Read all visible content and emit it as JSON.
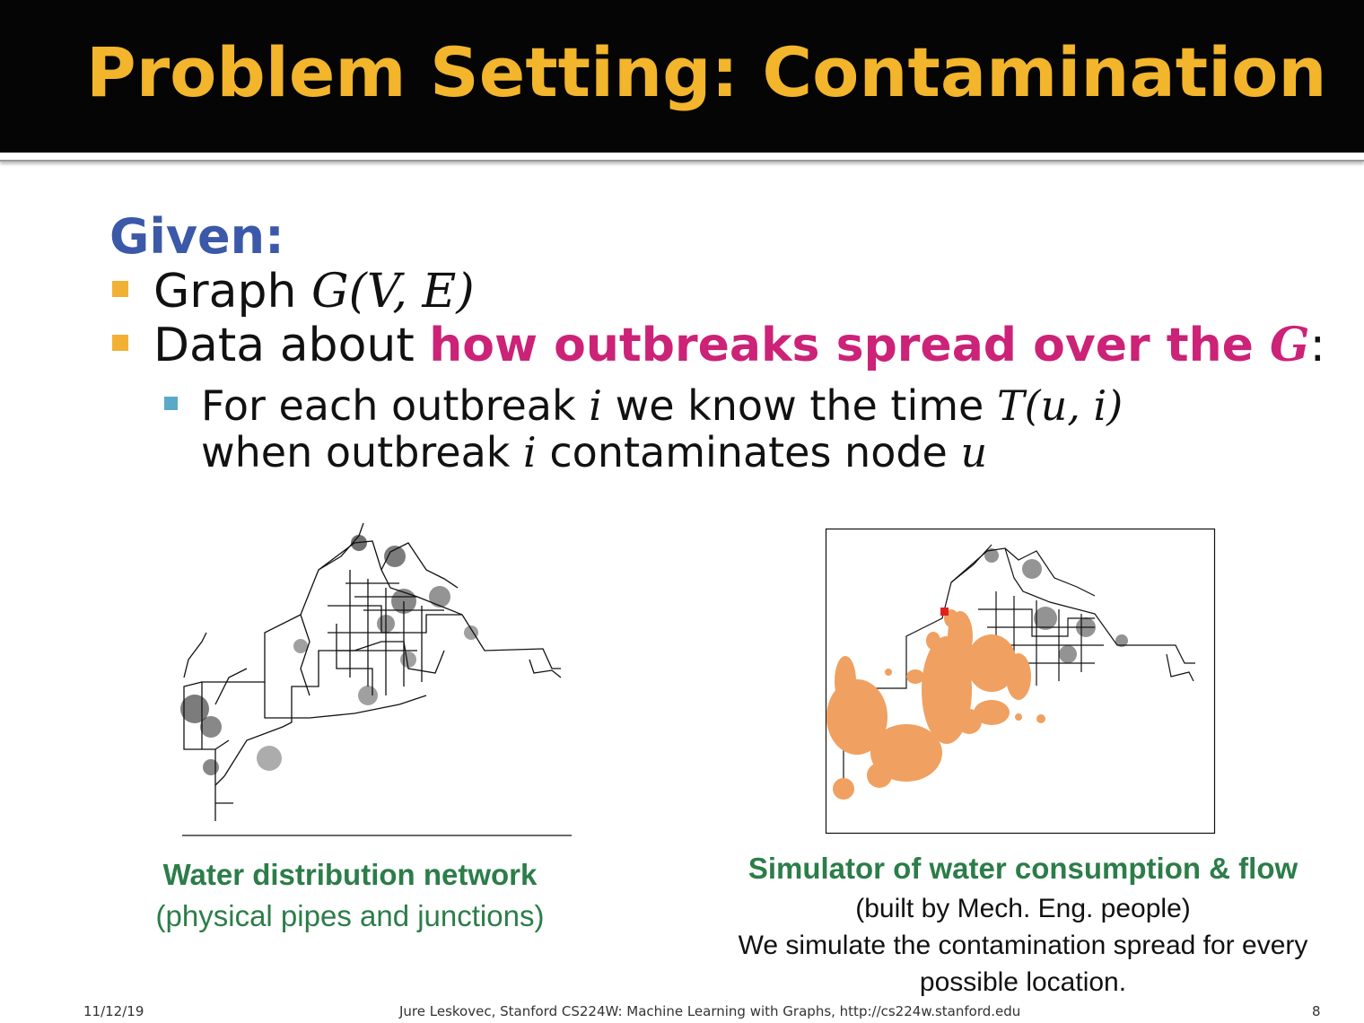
{
  "header": {
    "title": "Problem Setting: Contamination"
  },
  "body": {
    "given_label": "Given:",
    "bullets": [
      {
        "text": "Graph ",
        "math": "G(V, E)"
      },
      {
        "text": "Data about ",
        "highlight": "how outbreaks spread over the ",
        "highlight_math": "G",
        "suffix": ":"
      }
    ],
    "sub_bullet": {
      "line1_a": "For each outbreak ",
      "line1_m1": "i",
      "line1_b": " we know the time ",
      "line1_m2": "T(u, i)",
      "line2_a": "when outbreak ",
      "line2_m1": "i",
      "line2_b": " contaminates node ",
      "line2_m2": "u"
    }
  },
  "figures": {
    "left": {
      "caption_bold": "Water distribution network",
      "caption_sub": "(physical pipes and junctions)"
    },
    "right": {
      "caption_bold": "Simulator of water consumption & flow",
      "caption_line1": "(built by Mech. Eng. people)",
      "caption_line2": "We simulate the contamination spread for every",
      "caption_line3": "possible location."
    }
  },
  "footer": {
    "date": "11/12/19",
    "credit": "Jure Leskovec, Stanford CS224W: Machine Learning with Graphs, http://cs224w.stanford.edu",
    "page": "8"
  },
  "colors": {
    "title": "#f2b52b",
    "given": "#3b59a8",
    "highlight": "#cc2277",
    "caption_green": "#2c7d49",
    "contamination": "#f0a060",
    "source_marker": "#e02020"
  }
}
